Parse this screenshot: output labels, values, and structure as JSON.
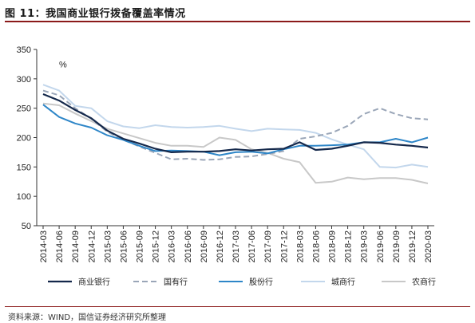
{
  "header": {
    "title": "图 11：我国商业银行拨备覆盖率情况"
  },
  "footer": {
    "source": "资料来源：WIND，国信证券经济研究所整理"
  },
  "colors": {
    "commercial": "#14284b",
    "state": "#9aa6b8",
    "joint": "#2e86c8",
    "city": "#c3d7ec",
    "rural": "#c8c8c8",
    "title_rule": "#8b1a1a"
  },
  "chart_data": {
    "type": "line",
    "unit_label": "%",
    "ylim": [
      50,
      350
    ],
    "yticks": [
      50,
      100,
      150,
      200,
      250,
      300,
      350
    ],
    "grid": false,
    "legend_position": "bottom",
    "x": [
      "2014-03",
      "2014-06",
      "2014-09",
      "2014-12",
      "2015-03",
      "2015-06",
      "2015-09",
      "2015-12",
      "2016-03",
      "2016-06",
      "2016-09",
      "2016-12",
      "2017-03",
      "2017-06",
      "2017-09",
      "2017-12",
      "2018-03",
      "2018-06",
      "2018-09",
      "2018-12",
      "2019-03",
      "2019-06",
      "2019-09",
      "2019-12",
      "2020-03"
    ],
    "series": [
      {
        "name": "商业银行",
        "key": "commercial",
        "dash": false,
        "values": [
          274,
          263,
          247,
          233,
          212,
          198,
          190,
          181,
          175,
          176,
          176,
          177,
          180,
          178,
          180,
          181,
          192,
          179,
          181,
          186,
          192,
          191,
          188,
          186,
          183
        ]
      },
      {
        "name": "国有行",
        "key": "state",
        "dash": true,
        "values": [
          280,
          272,
          250,
          232,
          210,
          196,
          185,
          174,
          163,
          164,
          162,
          163,
          167,
          168,
          172,
          177,
          198,
          202,
          208,
          220,
          240,
          250,
          240,
          233,
          231
        ]
      },
      {
        "name": "股份行",
        "key": "joint",
        "dash": false,
        "values": [
          256,
          235,
          224,
          217,
          204,
          196,
          186,
          177,
          178,
          177,
          176,
          170,
          175,
          176,
          173,
          180,
          186,
          186,
          187,
          188,
          192,
          192,
          198,
          192,
          200
        ]
      },
      {
        "name": "城商行",
        "key": "city",
        "dash": false,
        "values": [
          290,
          280,
          254,
          250,
          228,
          219,
          216,
          221,
          218,
          217,
          218,
          220,
          215,
          211,
          215,
          214,
          213,
          208,
          197,
          188,
          180,
          150,
          149,
          154,
          150
        ]
      },
      {
        "name": "农商行",
        "key": "rural",
        "dash": false,
        "values": [
          258,
          255,
          241,
          228,
          215,
          207,
          199,
          191,
          186,
          186,
          184,
          200,
          196,
          180,
          174,
          164,
          158,
          123,
          125,
          132,
          129,
          131,
          131,
          128,
          122
        ]
      }
    ]
  }
}
